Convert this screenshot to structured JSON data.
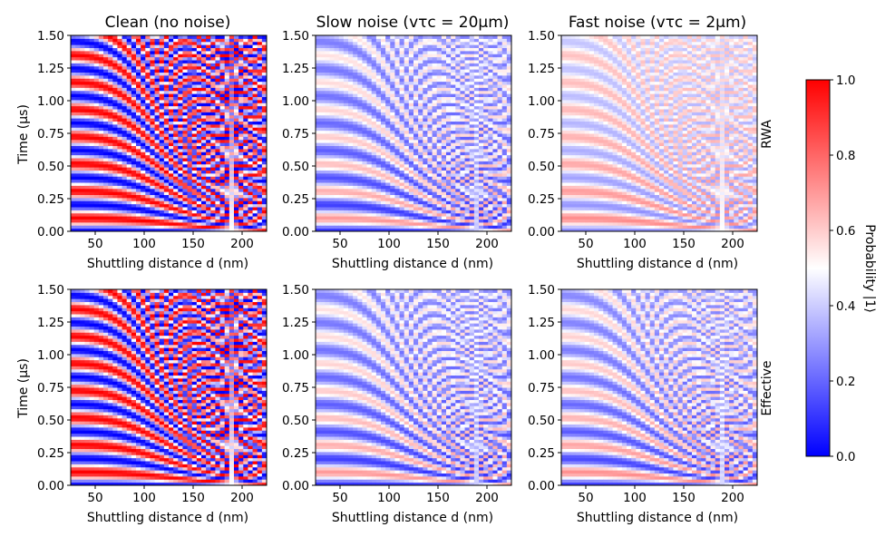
{
  "colors": {
    "low": "#0000ff",
    "mid": "#ffffff",
    "high": "#ff0000"
  },
  "chart_data": {
    "type": "heatmap",
    "colormap": "bwr",
    "rows": [
      "RWA",
      "Effective"
    ],
    "columns": [
      "Clean (no noise)",
      "Slow noise (vτc = 20μm)",
      "Fast noise (vτc = 2μm)"
    ],
    "xlabel": "Shuttling distance d (nm)",
    "ylabel": "Time (μs)",
    "xlim": [
      25,
      225
    ],
    "ylim": [
      0,
      1.5
    ],
    "xticks": [
      "50",
      "100",
      "150",
      "200"
    ],
    "yticks": [
      "0.00",
      "0.25",
      "0.50",
      "0.75",
      "1.00",
      "1.25",
      "1.50"
    ],
    "colorbar": {
      "label": "Probability |1⟩",
      "range": [
        0,
        1
      ],
      "ticks": [
        "0.0",
        "0.2",
        "0.4",
        "0.6",
        "0.8",
        "1.0"
      ]
    },
    "panels": [
      {
        "row": "RWA",
        "column": "Clean (no noise)",
        "contrast": 1.0,
        "offset": 0.0
      },
      {
        "row": "RWA",
        "column": "Slow noise (vτc = 20μm)",
        "contrast": 0.4,
        "offset": -0.1
      },
      {
        "row": "RWA",
        "column": "Fast noise (vτc = 2μm)",
        "contrast": 0.3,
        "offset": 0.0
      },
      {
        "row": "Effective",
        "column": "Clean (no noise)",
        "contrast": 1.0,
        "offset": 0.0
      },
      {
        "row": "Effective",
        "column": "Slow noise (vτc = 20μm)",
        "contrast": 0.4,
        "offset": -0.1
      },
      {
        "row": "Effective",
        "column": "Fast noise (vτc = 2μm)",
        "contrast": 0.4,
        "offset": -0.08
      }
    ]
  }
}
